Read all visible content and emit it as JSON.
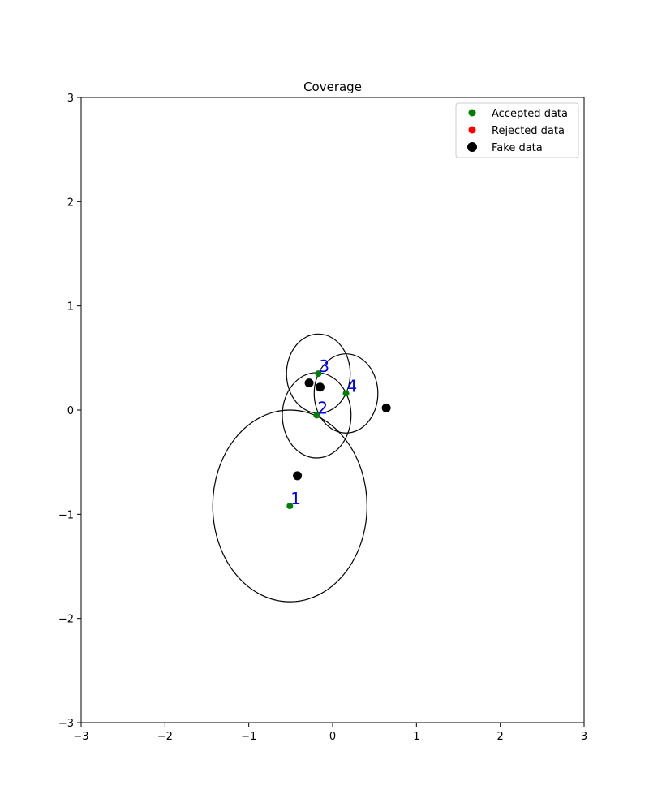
{
  "chart_data": {
    "type": "scatter",
    "title": "Coverage",
    "xlabel": "",
    "ylabel": "",
    "xlim": [
      -3,
      3
    ],
    "ylim": [
      -3,
      3
    ],
    "xticks": [
      -3,
      -2,
      -1,
      0,
      1,
      2,
      3
    ],
    "yticks": [
      -3,
      -2,
      -1,
      0,
      1,
      2,
      3
    ],
    "xtick_labels": [
      "−3",
      "−2",
      "−1",
      "0",
      "1",
      "2",
      "3"
    ],
    "ytick_labels": [
      "−3",
      "−2",
      "−1",
      "0",
      "1",
      "2",
      "3"
    ],
    "grid": false,
    "legend_position": "top-right",
    "legend": [
      {
        "label": "Accepted data",
        "color": "#008000",
        "marker": "small"
      },
      {
        "label": "Rejected data",
        "color": "#ff0000",
        "marker": "small"
      },
      {
        "label": "Fake data",
        "color": "#000000",
        "marker": "large"
      }
    ],
    "series": [
      {
        "name": "Accepted data",
        "color": "#008000",
        "points": [
          {
            "x": -0.51,
            "y": -0.92,
            "label": "1"
          },
          {
            "x": -0.19,
            "y": -0.05,
            "label": "2"
          },
          {
            "x": -0.17,
            "y": 0.35,
            "label": "3"
          },
          {
            "x": 0.16,
            "y": 0.16,
            "label": "4"
          }
        ]
      },
      {
        "name": "Rejected data",
        "color": "#ff0000",
        "points": []
      },
      {
        "name": "Fake data",
        "color": "#000000",
        "points": [
          {
            "x": -0.28,
            "y": 0.26
          },
          {
            "x": -0.15,
            "y": 0.22
          },
          {
            "x": 0.64,
            "y": 0.02
          },
          {
            "x": -0.42,
            "y": -0.63
          }
        ]
      }
    ],
    "coverage_ellipses": [
      {
        "cx": -0.51,
        "cy": -0.92,
        "rx": 0.92,
        "ry": 0.92
      },
      {
        "cx": -0.19,
        "cy": -0.05,
        "rx": 0.41,
        "ry": 0.41
      },
      {
        "cx": -0.17,
        "cy": 0.35,
        "rx": 0.38,
        "ry": 0.38
      },
      {
        "cx": 0.16,
        "cy": 0.16,
        "rx": 0.38,
        "ry": 0.38
      }
    ],
    "label_color": "#0000ff"
  }
}
